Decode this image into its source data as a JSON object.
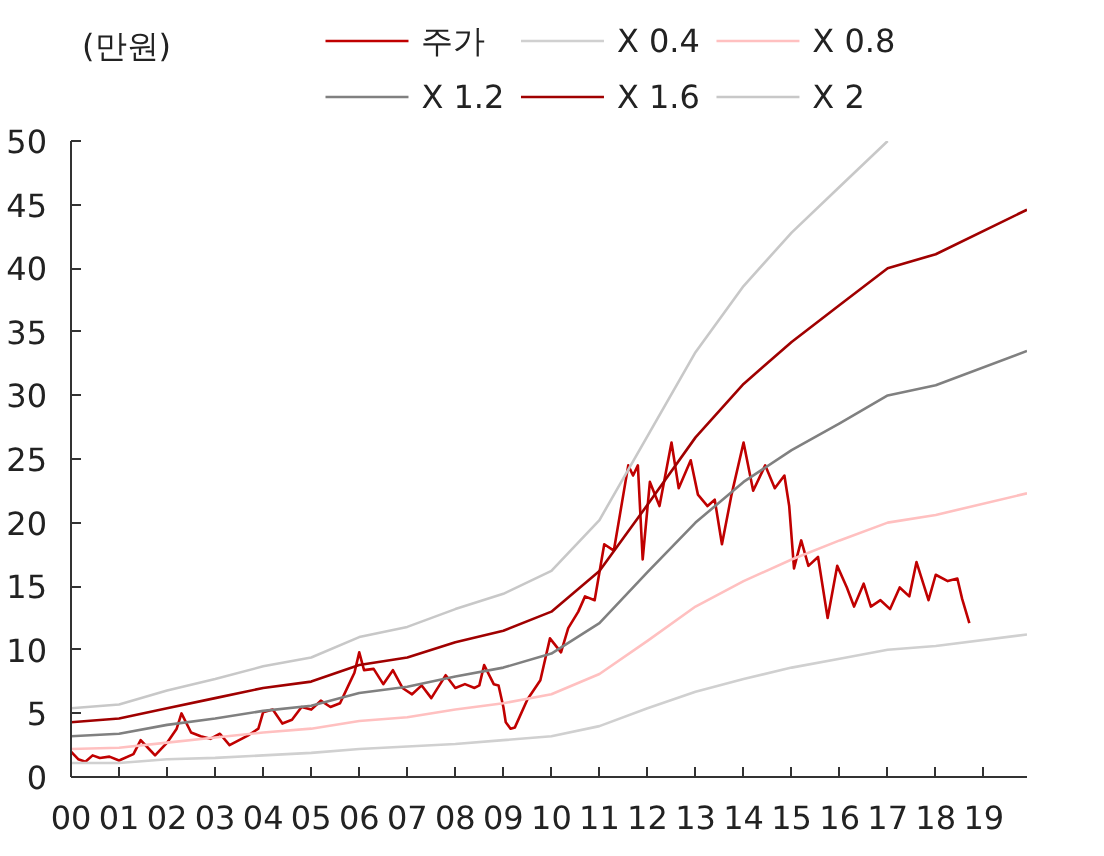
{
  "chart_data": {
    "type": "line",
    "ylabel": "(만원)",
    "xlim": [
      0,
      19.9
    ],
    "ylim": [
      0,
      50
    ],
    "xticks": [
      {
        "value": 0,
        "label": "00"
      },
      {
        "value": 1,
        "label": "01"
      },
      {
        "value": 2,
        "label": "02"
      },
      {
        "value": 3,
        "label": "03"
      },
      {
        "value": 4,
        "label": "04"
      },
      {
        "value": 5,
        "label": "05"
      },
      {
        "value": 6,
        "label": "06"
      },
      {
        "value": 7,
        "label": "07"
      },
      {
        "value": 8,
        "label": "08"
      },
      {
        "value": 9,
        "label": "09"
      },
      {
        "value": 10,
        "label": "10"
      },
      {
        "value": 11,
        "label": "11"
      },
      {
        "value": 12,
        "label": "12"
      },
      {
        "value": 13,
        "label": "13"
      },
      {
        "value": 14,
        "label": "14"
      },
      {
        "value": 15,
        "label": "15"
      },
      {
        "value": 16,
        "label": "16"
      },
      {
        "value": 17,
        "label": "17"
      },
      {
        "value": 18,
        "label": "18"
      },
      {
        "value": 19,
        "label": "19"
      }
    ],
    "yticks": [
      0,
      5,
      10,
      15,
      20,
      25,
      30,
      35,
      40,
      45,
      50
    ],
    "grid": false,
    "legend": "top",
    "series": [
      {
        "name": "주가",
        "color": "#c00000",
        "x": [
          0.0,
          0.15,
          0.3,
          0.45,
          0.6,
          0.8,
          1.0,
          1.3,
          1.45,
          1.6,
          1.75,
          2.0,
          2.2,
          2.3,
          2.5,
          2.7,
          2.9,
          3.1,
          3.3,
          3.5,
          3.7,
          3.9,
          4.0,
          4.2,
          4.4,
          4.6,
          4.8,
          5.0,
          5.2,
          5.4,
          5.6,
          5.8,
          5.9,
          6.0,
          6.1,
          6.3,
          6.5,
          6.7,
          6.9,
          7.1,
          7.3,
          7.5,
          7.7,
          7.8,
          8.0,
          8.2,
          8.4,
          8.5,
          8.6,
          8.8,
          8.9,
          9.0,
          9.05,
          9.15,
          9.24,
          9.5,
          9.77,
          9.97,
          10.2,
          10.35,
          10.56,
          10.7,
          10.9,
          11.1,
          11.3,
          11.6,
          11.7,
          11.8,
          11.9,
          12.05,
          12.25,
          12.5,
          12.65,
          12.9,
          13.05,
          13.25,
          13.4,
          13.55,
          13.75,
          14.0,
          14.2,
          14.45,
          14.65,
          14.85,
          14.95,
          15.05,
          15.2,
          15.35,
          15.55,
          15.75,
          15.95,
          16.15,
          16.3,
          16.5,
          16.65,
          16.85,
          17.05,
          17.25,
          17.45,
          17.6,
          17.85,
          18.0,
          18.25,
          18.45,
          18.55,
          18.7
        ],
        "values": [
          2.0,
          1.4,
          1.2,
          1.7,
          1.5,
          1.6,
          1.3,
          1.8,
          2.9,
          2.3,
          1.7,
          2.7,
          3.8,
          5.0,
          3.5,
          3.2,
          3.0,
          3.4,
          2.5,
          2.9,
          3.3,
          3.8,
          5.1,
          5.3,
          4.2,
          4.5,
          5.5,
          5.3,
          6.0,
          5.5,
          5.8,
          7.4,
          8.2,
          9.8,
          8.4,
          8.5,
          7.3,
          8.4,
          7.0,
          6.5,
          7.2,
          6.2,
          7.4,
          8.0,
          7.0,
          7.3,
          7.0,
          7.2,
          8.8,
          7.3,
          7.2,
          5.5,
          4.3,
          3.8,
          3.9,
          6.1,
          7.6,
          10.9,
          9.8,
          11.7,
          13.0,
          14.2,
          13.9,
          18.3,
          17.8,
          24.5,
          23.7,
          24.5,
          17.1,
          23.2,
          21.3,
          26.3,
          22.7,
          24.9,
          22.2,
          21.3,
          21.8,
          18.3,
          22.2,
          26.3,
          22.5,
          24.5,
          22.7,
          23.7,
          21.3,
          16.4,
          18.6,
          16.6,
          17.3,
          12.5,
          16.6,
          14.9,
          13.4,
          15.2,
          13.4,
          13.9,
          13.2,
          14.9,
          14.2,
          16.9,
          13.9,
          15.9,
          15.4,
          15.6,
          14.0,
          12.1
        ]
      },
      {
        "name": "X 0.4",
        "color": "#d0d0d0",
        "x": [
          0,
          1,
          2,
          3,
          4,
          5,
          6,
          7,
          8,
          9,
          10,
          11,
          12,
          13,
          14,
          15,
          16,
          17,
          18,
          19.9
        ],
        "values": [
          1.1,
          1.1,
          1.4,
          1.5,
          1.7,
          1.9,
          2.2,
          2.4,
          2.6,
          2.9,
          3.2,
          4.0,
          5.4,
          6.7,
          7.7,
          8.6,
          9.3,
          10.0,
          10.3,
          11.2
        ]
      },
      {
        "name": "X 0.8",
        "color": "#ffc0c0",
        "x": [
          0,
          1,
          2,
          3,
          4,
          5,
          6,
          7,
          8,
          9,
          10,
          11,
          12,
          13,
          14,
          15,
          16,
          17,
          18,
          19.9
        ],
        "values": [
          2.2,
          2.3,
          2.7,
          3.1,
          3.5,
          3.8,
          4.4,
          4.7,
          5.3,
          5.8,
          6.5,
          8.1,
          10.7,
          13.4,
          15.4,
          17.1,
          18.6,
          20.0,
          20.6,
          22.3
        ]
      },
      {
        "name": "X 1.2",
        "color": "#808080",
        "x": [
          0,
          1,
          2,
          3,
          4,
          5,
          6,
          7,
          8,
          9,
          10,
          11,
          12,
          13,
          14,
          15,
          16,
          17,
          18,
          19.9
        ],
        "values": [
          3.2,
          3.4,
          4.1,
          4.6,
          5.2,
          5.6,
          6.6,
          7.1,
          7.9,
          8.6,
          9.7,
          12.1,
          16.1,
          20.0,
          23.2,
          25.7,
          27.8,
          30.0,
          30.8,
          33.5
        ]
      },
      {
        "name": "X 1.6",
        "color": "#a00000",
        "x": [
          0,
          1,
          2,
          3,
          4,
          5,
          6,
          7,
          8,
          9,
          10,
          11,
          12,
          13,
          14,
          15,
          16,
          17,
          18,
          19.9
        ],
        "values": [
          4.3,
          4.6,
          5.4,
          6.2,
          7.0,
          7.5,
          8.8,
          9.4,
          10.6,
          11.5,
          13.0,
          16.2,
          21.4,
          26.7,
          30.9,
          34.2,
          37.1,
          40.0,
          41.1,
          44.6
        ]
      },
      {
        "name": "X 2",
        "color": "#c8c8c8",
        "x": [
          0,
          1,
          2,
          3,
          4,
          5,
          6,
          7,
          8,
          9,
          10,
          11,
          12,
          13,
          14,
          15,
          16,
          17
        ],
        "values": [
          5.4,
          5.7,
          6.8,
          7.7,
          8.7,
          9.4,
          11.0,
          11.8,
          13.2,
          14.4,
          16.2,
          20.2,
          26.8,
          33.4,
          38.6,
          42.8,
          46.4,
          50.0
        ]
      }
    ]
  }
}
